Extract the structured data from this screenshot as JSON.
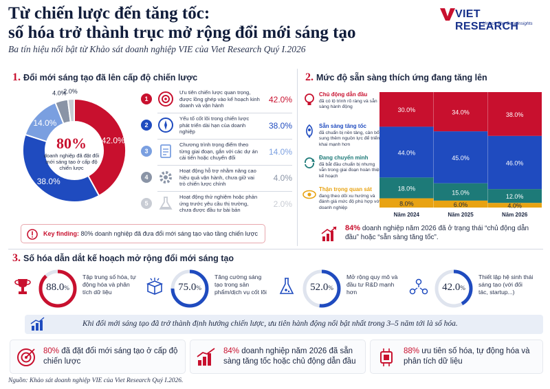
{
  "header": {
    "title_line1": "Từ chiến lược đến tăng tốc:",
    "title_line2": "số hóa trở thành trục mở rộng đổi mới sáng tạo",
    "subtitle": "Ba tín hiệu nổi bật từ Khảo sát doanh nghiệp VIE của Viet Research Quý I.2026",
    "logo_text": "VIET RESEARCH",
    "logo_tag": "Unlock The Data Insights"
  },
  "section1": {
    "number": "1.",
    "title": "Đổi mới sáng tạo đã lên cấp độ chiến lược",
    "center_value": "80%",
    "center_text": "doanh nghiệp đã đặt đổi mới sáng tạo ở cấp độ chiến lược",
    "key_label": "Key finding:",
    "key_text": "80% doanh nghiệp đã đưa đổi mới sáng tạo vào tầng chiến lược",
    "items": [
      {
        "num": "1",
        "text": "Ưu tiên chiến lược quan trọng, được lồng ghép vào kế hoạch kinh doanh và vận hành",
        "pct": "42.0%"
      },
      {
        "num": "2",
        "text": "Yếu tố cốt lõi trong chiến lược phát triển dài hạn của doanh nghiệp",
        "pct": "38.0%"
      },
      {
        "num": "3",
        "text": "Chương trình trọng điểm theo từng giai đoạn, gắn với các dự án cải tiến hoặc chuyển đổi",
        "pct": "14.0%"
      },
      {
        "num": "4",
        "text": "Hoạt động hỗ trợ nhằm nâng cao hiệu quả vận hành, chưa giữ vai trò chiến lược chính",
        "pct": "4.0%"
      },
      {
        "num": "5",
        "text": "Hoạt động thử nghiệm hoặc phản ứng trước yêu cầu thị trường, chưa được đầu tư bài bản",
        "pct": "2.0%"
      }
    ],
    "colors": [
      "#c8102e",
      "#1f4bbf",
      "#7a9fe0",
      "#8a94a6",
      "#c8ccd4"
    ]
  },
  "section2": {
    "number": "2.",
    "title": "Mức độ sẵn sàng thích ứng đang tăng lên",
    "legend": [
      {
        "title": "Chủ động dẫn đầu",
        "desc": "đã có lộ trình rõ ràng và sẵn sàng hành động",
        "color": "#c8102e"
      },
      {
        "title": "Sẵn sàng tăng tốc",
        "desc": "đã chuẩn bị nền tảng, cân bổ sung thêm nguồn lực để triển khai mạnh hơn",
        "color": "#1f4bbf"
      },
      {
        "title": "Đang chuyển mình",
        "desc": "đã bắt đầu chuẩn bị nhưng vẫn trong giai đoạn hoàn thiện kế hoạch",
        "color": "#1d7a78"
      },
      {
        "title": "Thận trọng quan sát",
        "desc": "đang theo dõi xu hướng và đánh giá mức độ phù hợp với doanh nghiệp",
        "color": "#e8a313"
      }
    ],
    "highlight_value": "84%",
    "highlight_text": "doanh nghiệp năm 2026 đã ở trạng thái “chủ động dẫn đầu” hoặc “sẵn sàng tăng tốc”."
  },
  "section3": {
    "number": "3.",
    "title": "Số hóa dẫn dắt kế hoạch mở rộng đổi mới sáng tạo",
    "stats": [
      {
        "value": "88.0",
        "suffix": "%",
        "pct": 0.88,
        "text": "Tập trung số hóa, tự động hóa và phân tích dữ liệu",
        "ring": "#c8102e"
      },
      {
        "value": "75.0",
        "suffix": "%",
        "pct": 0.75,
        "text": "Tăng cường sáng tạo trong sản phẩm/dịch vụ cốt lõi",
        "ring": "#1f4bbf"
      },
      {
        "value": "52.0",
        "suffix": "%",
        "pct": 0.52,
        "text": "Mở rộng quy mô và đầu tư R&D mạnh hơn",
        "ring": "#1f4bbf"
      },
      {
        "value": "42.0",
        "suffix": "%",
        "pct": 0.42,
        "text": "Thiết lập hệ sinh thái sáng tạo (với đối tác, startup...)",
        "ring": "#1f4bbf"
      }
    ],
    "banner": "Khi đổi mới sáng tạo đã trở thành định hướng chiến lược, ưu tiên hành động nổi bật nhất trong 3–5 năm tới là số hóa."
  },
  "bottom": [
    {
      "value": "80%",
      "text": "đã đặt đổi mới sáng tạo ở cấp độ chiến lược"
    },
    {
      "value": "84%",
      "text": "doanh nghiệp năm 2026 đã sẵn sàng tăng tốc hoặc chủ động dẫn đầu"
    },
    {
      "value": "88%",
      "text": "ưu tiên số hóa, tự động hóa và phân tích dữ liệu"
    }
  ],
  "source": "Nguồn: Khảo sát doanh nghiệp VIE của Viet Research Quý I.2026.",
  "chart_data": [
    {
      "type": "pie",
      "categories": [
        "Ưu tiên chiến lược quan trọng",
        "Yếu tố cốt lõi",
        "Chương trình trọng điểm",
        "Hoạt động hỗ trợ",
        "Hoạt động thử nghiệm"
      ],
      "values": [
        42.0,
        38.0,
        14.0,
        4.0,
        2.0
      ],
      "labels": [
        "42.0%",
        "38.0%",
        "14.0%",
        "4.0%",
        "2.0%"
      ]
    },
    {
      "type": "bar",
      "stacked": true,
      "categories": [
        "Năm 2024",
        "Năm 2025",
        "Năm 2026"
      ],
      "series": [
        {
          "name": "Thận trọng quan sát",
          "values": [
            8.0,
            6.0,
            4.0
          ]
        },
        {
          "name": "Đang chuyển mình",
          "values": [
            18.0,
            15.0,
            12.0
          ]
        },
        {
          "name": "Sẵn sàng tăng tốc",
          "values": [
            44.0,
            45.0,
            46.0
          ]
        },
        {
          "name": "Chủ động dẫn đầu",
          "values": [
            30.0,
            34.0,
            38.0
          ]
        }
      ],
      "ylim": [
        0,
        100
      ]
    }
  ]
}
